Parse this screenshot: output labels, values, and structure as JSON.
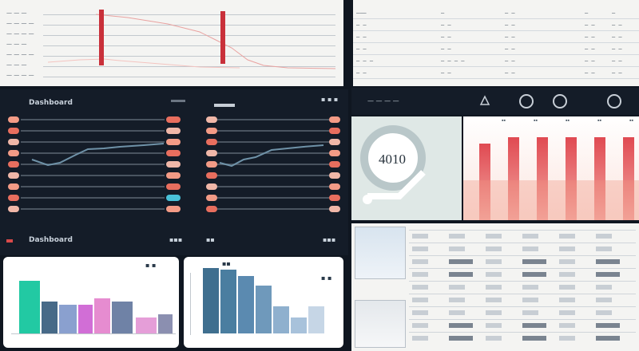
{
  "top_left_panel": {
    "row_labels": [
      "— — —",
      "— — — —",
      "— — — —",
      "— — —",
      "— — — —",
      "— — —",
      "— — — —"
    ],
    "accent": "#c0323a"
  },
  "top_right_table": {
    "rows": [
      [
        "———",
        "—",
        "— —",
        "—",
        "—"
      ],
      [
        "— —",
        "— —",
        "— —",
        "— —",
        "— —"
      ],
      [
        "— —",
        "— —",
        "— —",
        "— —",
        "— —"
      ],
      [
        "— —",
        "— —",
        "— —",
        "— —",
        "— —"
      ],
      [
        "— — —",
        "— — — —",
        "— —",
        "— —",
        "— —"
      ],
      [
        "— —",
        "— —",
        "— —",
        "— —",
        "— —"
      ]
    ]
  },
  "mixer_panel": {
    "title": "Dashboard",
    "header_right": "▪ ▪ ▪",
    "footer_title": "Dashboard",
    "footer_items": [
      "▪▪▪",
      "▪▪",
      "▪▪▪"
    ],
    "knob_colors": [
      "#f39b86",
      "#e86e5e",
      "#f0b7a8",
      "#49c1d8"
    ]
  },
  "right_header": {
    "title": "— — — —",
    "icons": [
      "upload-icon",
      "refresh-icon",
      "profile-icon",
      "settings-icon"
    ]
  },
  "gauge": {
    "value": "4010",
    "color": "#9fb3b6"
  },
  "bar_chart_red": {
    "header_labels": [
      "▪▪",
      "▪▪",
      "▪▪",
      "▪▪",
      "▪▪"
    ]
  },
  "color_bars": {
    "title": "— — —",
    "header_right": "▪ ▪",
    "colors": [
      "#22c9a3",
      "#476a88",
      "#8aa0cf",
      "#d16ed6",
      "#e68cd0",
      "#6f82a6",
      "#e59ed8",
      "#8b8fb0"
    ]
  },
  "blue_bars": {
    "title": "▪▪",
    "header_right": "▪ ▪",
    "color": "#3f7598"
  },
  "lower_right": {
    "sections": [
      "— — —",
      "— — —"
    ]
  }
}
